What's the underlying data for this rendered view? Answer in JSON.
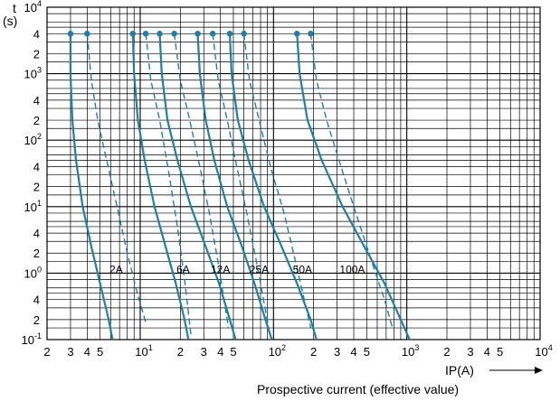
{
  "chart_data": {
    "type": "line",
    "xscale": "log",
    "yscale": "log",
    "xlim": [
      2,
      10000
    ],
    "ylim": [
      0.1,
      10000
    ],
    "grid": true,
    "y_unit_label": [
      "t",
      "(s)"
    ],
    "xlabel": "IP(A)",
    "x_caption": "Prospective current (effective value)",
    "x_ticks": [
      {
        "v": 2,
        "m": "2",
        "e": ""
      },
      {
        "v": 3,
        "m": "3",
        "e": ""
      },
      {
        "v": 4,
        "m": "4",
        "e": ""
      },
      {
        "v": 5,
        "m": "5",
        "e": ""
      },
      {
        "v": 10,
        "m": "10",
        "e": "1"
      },
      {
        "v": 20,
        "m": "2",
        "e": ""
      },
      {
        "v": 30,
        "m": "3",
        "e": ""
      },
      {
        "v": 40,
        "m": "4",
        "e": ""
      },
      {
        "v": 50,
        "m": "5",
        "e": ""
      },
      {
        "v": 100,
        "m": "10",
        "e": "2"
      },
      {
        "v": 200,
        "m": "2",
        "e": ""
      },
      {
        "v": 300,
        "m": "3",
        "e": ""
      },
      {
        "v": 400,
        "m": "4",
        "e": ""
      },
      {
        "v": 500,
        "m": "5",
        "e": ""
      },
      {
        "v": 1000,
        "m": "10",
        "e": "3"
      },
      {
        "v": 2000,
        "m": "2",
        "e": ""
      },
      {
        "v": 3000,
        "m": "3",
        "e": ""
      },
      {
        "v": 4000,
        "m": "4",
        "e": ""
      },
      {
        "v": 5000,
        "m": "5",
        "e": ""
      },
      {
        "v": 10000,
        "m": "10",
        "e": "4"
      }
    ],
    "y_ticks": [
      {
        "v": 0.1,
        "m": "10",
        "e": "-1"
      },
      {
        "v": 0.2,
        "m": "2",
        "e": ""
      },
      {
        "v": 0.4,
        "m": "4",
        "e": ""
      },
      {
        "v": 1,
        "m": "10",
        "e": "0"
      },
      {
        "v": 2,
        "m": "2",
        "e": ""
      },
      {
        "v": 4,
        "m": "4",
        "e": ""
      },
      {
        "v": 10,
        "m": "10",
        "e": "1"
      },
      {
        "v": 20,
        "m": "2",
        "e": ""
      },
      {
        "v": 40,
        "m": "4",
        "e": ""
      },
      {
        "v": 100,
        "m": "10",
        "e": "2"
      },
      {
        "v": 200,
        "m": "2",
        "e": ""
      },
      {
        "v": 400,
        "m": "4",
        "e": ""
      },
      {
        "v": 1000,
        "m": "10",
        "e": "3"
      },
      {
        "v": 2000,
        "m": "2",
        "e": ""
      },
      {
        "v": 4000,
        "m": "4",
        "e": ""
      },
      {
        "v": 10000,
        "m": "10",
        "e": "4"
      }
    ],
    "line_color": "#1f7fa6",
    "series": [
      {
        "name": "2A",
        "label_at": [
          6.6,
          1.0
        ],
        "solid": {
          "x": [
            3.0,
            3.0,
            3.1,
            3.3,
            3.7,
            4.3,
            5.0,
            5.8,
            6.2
          ],
          "y": [
            4000,
            1000,
            200,
            50,
            10,
            2.5,
            0.7,
            0.2,
            0.1
          ]
        },
        "dashed": {
          "x": [
            4.0,
            4.3,
            4.8,
            5.6,
            6.7,
            8.0,
            9.5,
            11.0
          ],
          "y": [
            4000,
            800,
            200,
            50,
            10,
            2.0,
            0.5,
            0.18
          ]
        }
      },
      {
        "name": "6A",
        "label_at": [
          21,
          1.0
        ],
        "solid": {
          "x": [
            8.8,
            9.0,
            9.6,
            10.8,
            12.8,
            15.5,
            18.5,
            21.5,
            23
          ],
          "y": [
            4000,
            1000,
            200,
            50,
            10,
            2.5,
            0.7,
            0.2,
            0.1
          ]
        },
        "dashed": {
          "x": [
            11.0,
            12.0,
            14.0,
            16.5,
            19.0,
            21.5,
            24.0
          ],
          "y": [
            4000,
            800,
            200,
            30,
            5,
            0.8,
            0.12
          ]
        }
      },
      {
        "name": "12A",
        "label_at": [
          40,
          1.0
        ],
        "solid": {
          "x": [
            14.0,
            14.5,
            16.0,
            19.0,
            24.0,
            31.0,
            39.0,
            47.0,
            52.0
          ],
          "y": [
            4000,
            1000,
            200,
            50,
            10,
            2.5,
            0.7,
            0.2,
            0.1
          ]
        },
        "dashed": {
          "x": [
            18.0,
            20.0,
            23.5,
            28.0,
            33.0,
            39.0,
            46.0
          ],
          "y": [
            4000,
            800,
            200,
            40,
            8,
            1.2,
            0.15
          ]
        }
      },
      {
        "name": "25A",
        "label_at": [
          78,
          1.0
        ],
        "solid": {
          "x": [
            27.0,
            28.0,
            31.0,
            36.0,
            45.0,
            58.0,
            72.0,
            87.0,
            97.0
          ],
          "y": [
            4000,
            1000,
            200,
            50,
            10,
            2.5,
            0.7,
            0.2,
            0.1
          ]
        },
        "dashed": {
          "x": [
            35.0,
            38.5,
            45.0,
            53.0,
            63.0,
            76.0,
            92.0
          ],
          "y": [
            4000,
            800,
            200,
            40,
            8,
            1.2,
            0.15
          ]
        }
      },
      {
        "name": "50A",
        "label_at": [
          165,
          1.0
        ],
        "solid": {
          "x": [
            47.0,
            48.5,
            54.0,
            65.0,
            85.0,
            115.0,
            150.0,
            190.0,
            210.0
          ],
          "y": [
            4000,
            1000,
            200,
            50,
            10,
            2.5,
            0.7,
            0.2,
            0.1
          ]
        },
        "dashed": {
          "x": [
            60.0,
            66.0,
            78.0,
            95.0,
            120.0,
            150.0,
            190.0
          ],
          "y": [
            4000,
            800,
            200,
            40,
            8,
            1.2,
            0.15
          ]
        }
      },
      {
        "name": "100A",
        "label_at": [
          390,
          1.0
        ],
        "solid": {
          "x": [
            150.0,
            157.0,
            180.0,
            230.0,
            330.0,
            480.0,
            680.0,
            900.0,
            1050.0
          ],
          "y": [
            4000,
            1000,
            200,
            50,
            10,
            2.5,
            0.7,
            0.2,
            0.1
          ]
        },
        "dashed": {
          "x": [
            190.0,
            210.0,
            250.0,
            310.0,
            400.0,
            520.0,
            680.0,
            780.0
          ],
          "y": [
            4000,
            800,
            200,
            50,
            10,
            2.0,
            0.4,
            0.15
          ]
        }
      }
    ]
  }
}
